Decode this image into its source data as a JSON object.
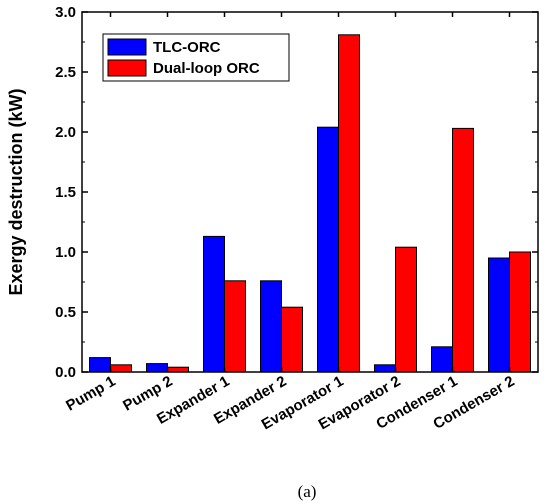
{
  "chart_data": {
    "type": "bar",
    "categories": [
      "Pump 1",
      "Pump 2",
      "Expander 1",
      "Expander 2",
      "Evaporator 1",
      "Evaporator 2",
      "Condenser 1",
      "Condenser 2"
    ],
    "series": [
      {
        "name": "TLC-ORC",
        "color": "#0000ff",
        "values": [
          0.12,
          0.07,
          1.13,
          0.76,
          2.04,
          0.06,
          0.21,
          0.95
        ]
      },
      {
        "name": "Dual-loop ORC",
        "color": "#ff0000",
        "values": [
          0.06,
          0.04,
          0.76,
          0.54,
          2.81,
          1.04,
          2.03,
          1.0
        ]
      }
    ],
    "title": "",
    "xlabel": "",
    "ylabel": "Exergy destruction (kW)",
    "ylim": [
      0,
      3.0
    ],
    "yticks": [
      "0.0",
      "0.5",
      "1.0",
      "1.5",
      "2.0",
      "2.5",
      "3.0"
    ],
    "grid": false,
    "legend_position": "top-left"
  },
  "caption": "(a)"
}
